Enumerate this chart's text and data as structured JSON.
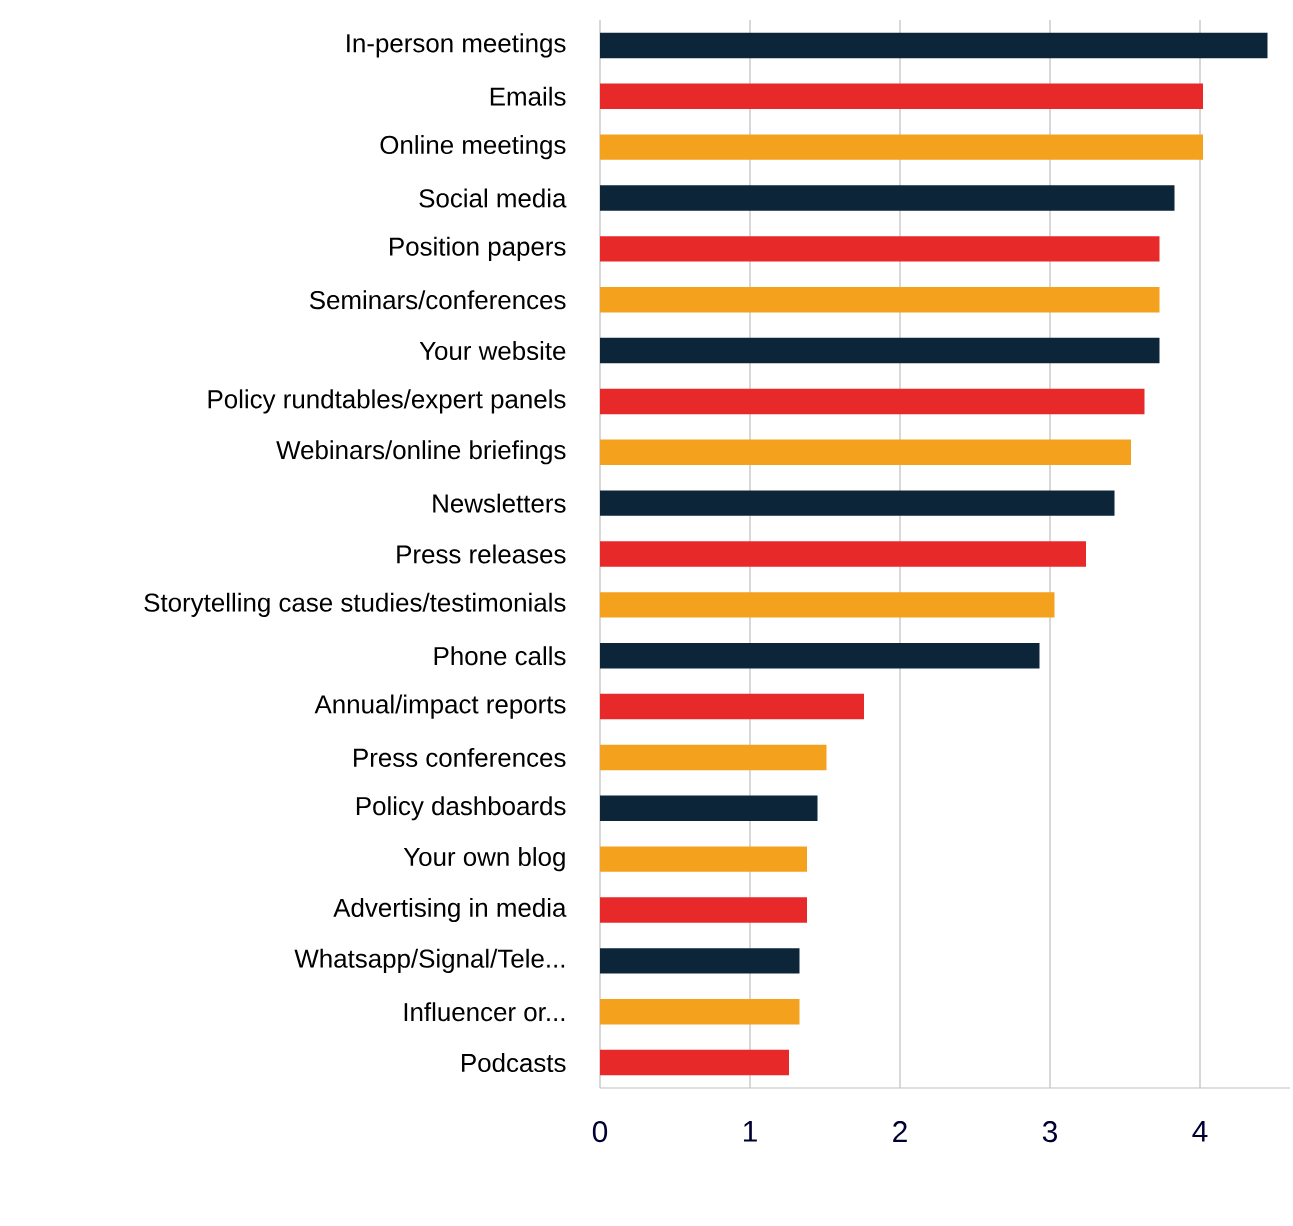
{
  "chart_data": {
    "type": "bar",
    "orientation": "horizontal",
    "categories": [
      "In-person meetings",
      "Emails",
      "Online meetings",
      "Social media",
      "Position papers",
      "Seminars/conferences",
      "Your website",
      "Policy rundtables/expert panels",
      "Webinars/online briefings",
      "Newsletters",
      "Press releases",
      "Storytelling case studies/testimonials",
      "Phone calls",
      "Annual/impact reports",
      "Press conferences",
      "Policy dashboards",
      "Your own blog",
      "Advertising in media",
      "Whatsapp/Signal/Tele...",
      "Influencer or...",
      "Podcasts"
    ],
    "values": [
      4.45,
      4.02,
      4.02,
      3.83,
      3.73,
      3.73,
      3.73,
      3.63,
      3.54,
      3.43,
      3.24,
      3.03,
      2.93,
      1.76,
      1.51,
      1.45,
      1.38,
      1.38,
      1.33,
      1.33,
      1.26
    ],
    "colors": [
      "#0d2538",
      "#e8292a",
      "#f4a11d",
      "#0d2538",
      "#e8292a",
      "#f4a11d",
      "#0d2538",
      "#e8292a",
      "#f4a11d",
      "#0d2538",
      "#e8292a",
      "#f4a11d",
      "#0d2538",
      "#e8292a",
      "#f4a11d",
      "#0d2538",
      "#f4a11d",
      "#e8292a",
      "#0d2538",
      "#f4a11d",
      "#e8292a"
    ],
    "xlim": [
      0,
      4.6
    ],
    "xticks": [
      0,
      1,
      2,
      3,
      4
    ],
    "grid": "x"
  }
}
